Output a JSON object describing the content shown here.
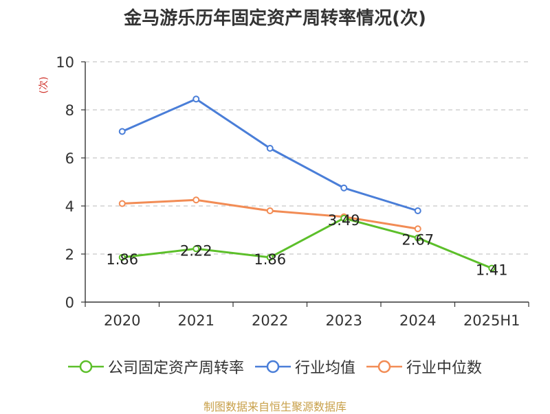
{
  "title": "金马游乐历年固定资产周转率情况(次)",
  "source": "制图数据来自恒生聚源数据库",
  "chart_data": {
    "type": "line",
    "title": "金马游乐历年固定资产周转率情况(次)",
    "ylabel": "(次)",
    "ylim": [
      0,
      10
    ],
    "yticks": [
      "0",
      "2",
      "4",
      "6",
      "8",
      "10"
    ],
    "grid": true,
    "legend_position": "bottom",
    "categories": [
      "2020",
      "2021",
      "2022",
      "2023",
      "2024",
      "2025H1"
    ],
    "series": [
      {
        "name": "公司固定资产周转率",
        "color": "#5cbf2a",
        "values": [
          1.86,
          2.22,
          1.86,
          3.49,
          2.67,
          1.41
        ],
        "labels": [
          "1.86",
          "2.22",
          "1.86",
          "3.49",
          "2.67",
          "1.41"
        ]
      },
      {
        "name": "行业均值",
        "color": "#4a7ed8",
        "values": [
          7.1,
          8.45,
          6.4,
          4.75,
          3.8,
          null
        ]
      },
      {
        "name": "行业中位数",
        "color": "#f28c55",
        "values": [
          4.1,
          4.25,
          3.8,
          3.55,
          3.05,
          null
        ]
      }
    ]
  }
}
